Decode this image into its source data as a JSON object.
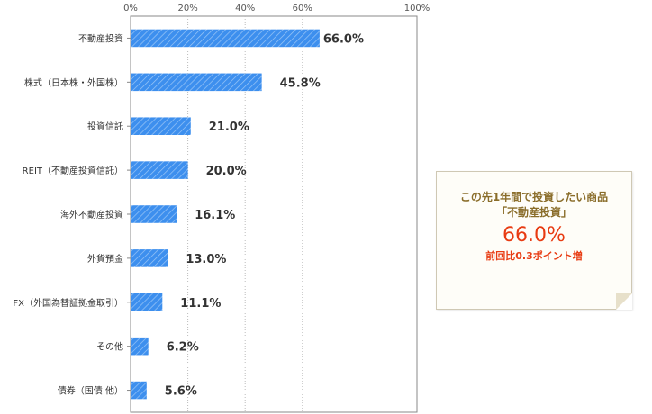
{
  "chart_data": {
    "type": "bar",
    "orientation": "horizontal",
    "xlim": [
      0,
      100
    ],
    "ticks": [
      "0%",
      "20%",
      "40%",
      "60%",
      "100%"
    ],
    "tick_values": [
      0,
      20,
      40,
      60,
      100
    ],
    "categories": [
      "不動産投資",
      "株式（日本株・外国株）",
      "投資信託",
      "REIT（不動産投資信託）",
      "海外不動産投資",
      "外貨預金",
      "FX（外国為替証拠金取引）",
      "その他",
      "債券（国債 他）"
    ],
    "values": [
      66.0,
      45.8,
      21.0,
      20.0,
      16.1,
      13.0,
      11.1,
      6.2,
      5.6
    ],
    "value_labels": [
      "66.0%",
      "45.8%",
      "21.0%",
      "20.0%",
      "16.1%",
      "13.0%",
      "11.1%",
      "6.2%",
      "5.6%"
    ],
    "bar_color": "#3d8fee",
    "grid": true
  },
  "callout": {
    "line1": "この先1年間で投資したい商品",
    "line2": "「不動産投資」",
    "percent": "66.0%",
    "sub": "前回比0.3ポイント増"
  },
  "colors": {
    "callout_text": "#8a6d2a",
    "accent": "#e83b12",
    "grid": "#bbbbbb"
  }
}
